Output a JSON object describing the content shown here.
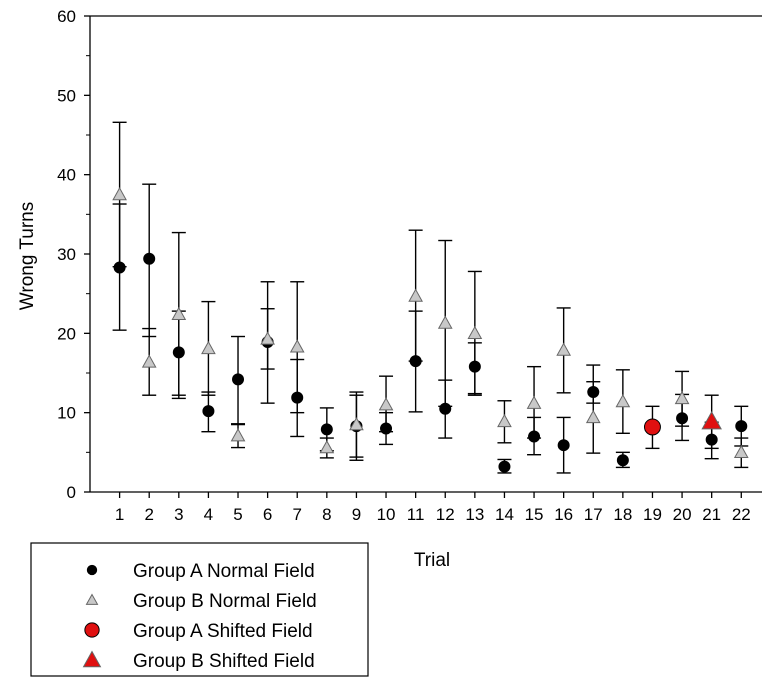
{
  "chart_data": {
    "type": "scatter",
    "title": "",
    "xlabel": "Trial",
    "ylabel": "Wrong Turns",
    "xlim": [
      0,
      22.7
    ],
    "ylim": [
      0,
      60
    ],
    "x_ticks": [
      "1",
      "2",
      "3",
      "4",
      "5",
      "6",
      "7",
      "8",
      "9",
      "10",
      "11",
      "12",
      "13",
      "14",
      "15",
      "16",
      "17",
      "18",
      "19",
      "20",
      "21",
      "22"
    ],
    "y_ticks": [
      "0",
      "10",
      "20",
      "30",
      "40",
      "50",
      "60"
    ],
    "grid": false,
    "legend_position": "bottom-left",
    "error_bars": true,
    "series": [
      {
        "name": "Group A Normal Field",
        "marker": "circle",
        "color": "#000000",
        "points": [
          {
            "x": 1,
            "y": 28.3,
            "low": 20.4,
            "high": 36.3
          },
          {
            "x": 2,
            "y": 29.4,
            "low": 19.6,
            "high": 38.8
          },
          {
            "x": 3,
            "y": 17.6,
            "low": 12.2,
            "high": 22.8
          },
          {
            "x": 4,
            "y": 10.2,
            "low": 7.6,
            "high": 12.6
          },
          {
            "x": 5,
            "y": 14.2,
            "low": 8.6,
            "high": 19.6
          },
          {
            "x": 6,
            "y": 18.9,
            "low": 11.2,
            "high": 26.5
          },
          {
            "x": 7,
            "y": 11.9,
            "low": 7.0,
            "high": 16.7
          },
          {
            "x": 8,
            "y": 7.9,
            "low": 5.2,
            "high": 10.6
          },
          {
            "x": 9,
            "y": 8.3,
            "low": 4.0,
            "high": 12.6
          },
          {
            "x": 10,
            "y": 8.0,
            "low": 6.0,
            "high": 10.0
          },
          {
            "x": 11,
            "y": 16.5,
            "low": 10.1,
            "high": 22.8
          },
          {
            "x": 12,
            "y": 10.5,
            "low": 6.8,
            "high": 14.1
          },
          {
            "x": 13,
            "y": 15.8,
            "low": 12.2,
            "high": 18.8
          },
          {
            "x": 14,
            "y": 3.2,
            "low": 2.4,
            "high": 4.1
          },
          {
            "x": 15,
            "y": 7.0,
            "low": 4.7,
            "high": 9.4
          },
          {
            "x": 16,
            "y": 5.9,
            "low": 2.4,
            "high": 9.4
          },
          {
            "x": 17,
            "y": 12.6,
            "low": 11.2,
            "high": 13.9
          },
          {
            "x": 18,
            "y": 4.0,
            "low": 3.1,
            "high": 5.0
          },
          {
            "x": 20,
            "y": 9.3,
            "low": 6.5,
            "high": 12.3
          },
          {
            "x": 21,
            "y": 6.6,
            "low": 4.2,
            "high": 8.8
          },
          {
            "x": 22,
            "y": 8.3,
            "low": 5.8,
            "high": 10.8
          }
        ]
      },
      {
        "name": "Group B Normal Field",
        "marker": "triangle",
        "color": "#c8c8c8",
        "points": [
          {
            "x": 1,
            "y": 37.5,
            "low": 28.4,
            "high": 46.6
          },
          {
            "x": 2,
            "y": 16.4,
            "low": 12.2,
            "high": 20.6
          },
          {
            "x": 3,
            "y": 22.4,
            "low": 11.8,
            "high": 32.7
          },
          {
            "x": 4,
            "y": 18.1,
            "low": 12.2,
            "high": 24.0
          },
          {
            "x": 5,
            "y": 7.1,
            "low": 5.6,
            "high": 8.5
          },
          {
            "x": 6,
            "y": 19.3,
            "low": 15.5,
            "high": 23.1
          },
          {
            "x": 7,
            "y": 18.3,
            "low": 10.0,
            "high": 26.5
          },
          {
            "x": 8,
            "y": 5.6,
            "low": 4.3,
            "high": 6.8
          },
          {
            "x": 9,
            "y": 8.5,
            "low": 4.4,
            "high": 12.2
          },
          {
            "x": 10,
            "y": 11.0,
            "low": 7.6,
            "high": 14.6
          },
          {
            "x": 11,
            "y": 24.7,
            "low": 16.5,
            "high": 33.0
          },
          {
            "x": 12,
            "y": 21.3,
            "low": 10.8,
            "high": 31.7
          },
          {
            "x": 13,
            "y": 20.0,
            "low": 12.4,
            "high": 27.8
          },
          {
            "x": 14,
            "y": 8.9,
            "low": 6.2,
            "high": 11.5
          },
          {
            "x": 15,
            "y": 11.2,
            "low": 6.8,
            "high": 15.8
          },
          {
            "x": 16,
            "y": 17.9,
            "low": 12.5,
            "high": 23.2
          },
          {
            "x": 17,
            "y": 9.4,
            "low": 4.9,
            "high": 16.0
          },
          {
            "x": 18,
            "y": 11.4,
            "low": 7.4,
            "high": 15.4
          },
          {
            "x": 20,
            "y": 11.8,
            "low": 8.3,
            "high": 15.2
          },
          {
            "x": 22,
            "y": 5.0,
            "low": 3.1,
            "high": 6.8
          }
        ]
      },
      {
        "name": "Group A Shifted Field",
        "marker": "circle",
        "color": "#e01010",
        "points": [
          {
            "x": 19,
            "y": 8.2,
            "low": 5.5,
            "high": 10.8
          }
        ]
      },
      {
        "name": "Group B Shifted Field",
        "marker": "triangle",
        "color": "#e01010",
        "points": [
          {
            "x": 21,
            "y": 8.9,
            "low": 5.5,
            "high": 12.2
          }
        ]
      }
    ]
  }
}
